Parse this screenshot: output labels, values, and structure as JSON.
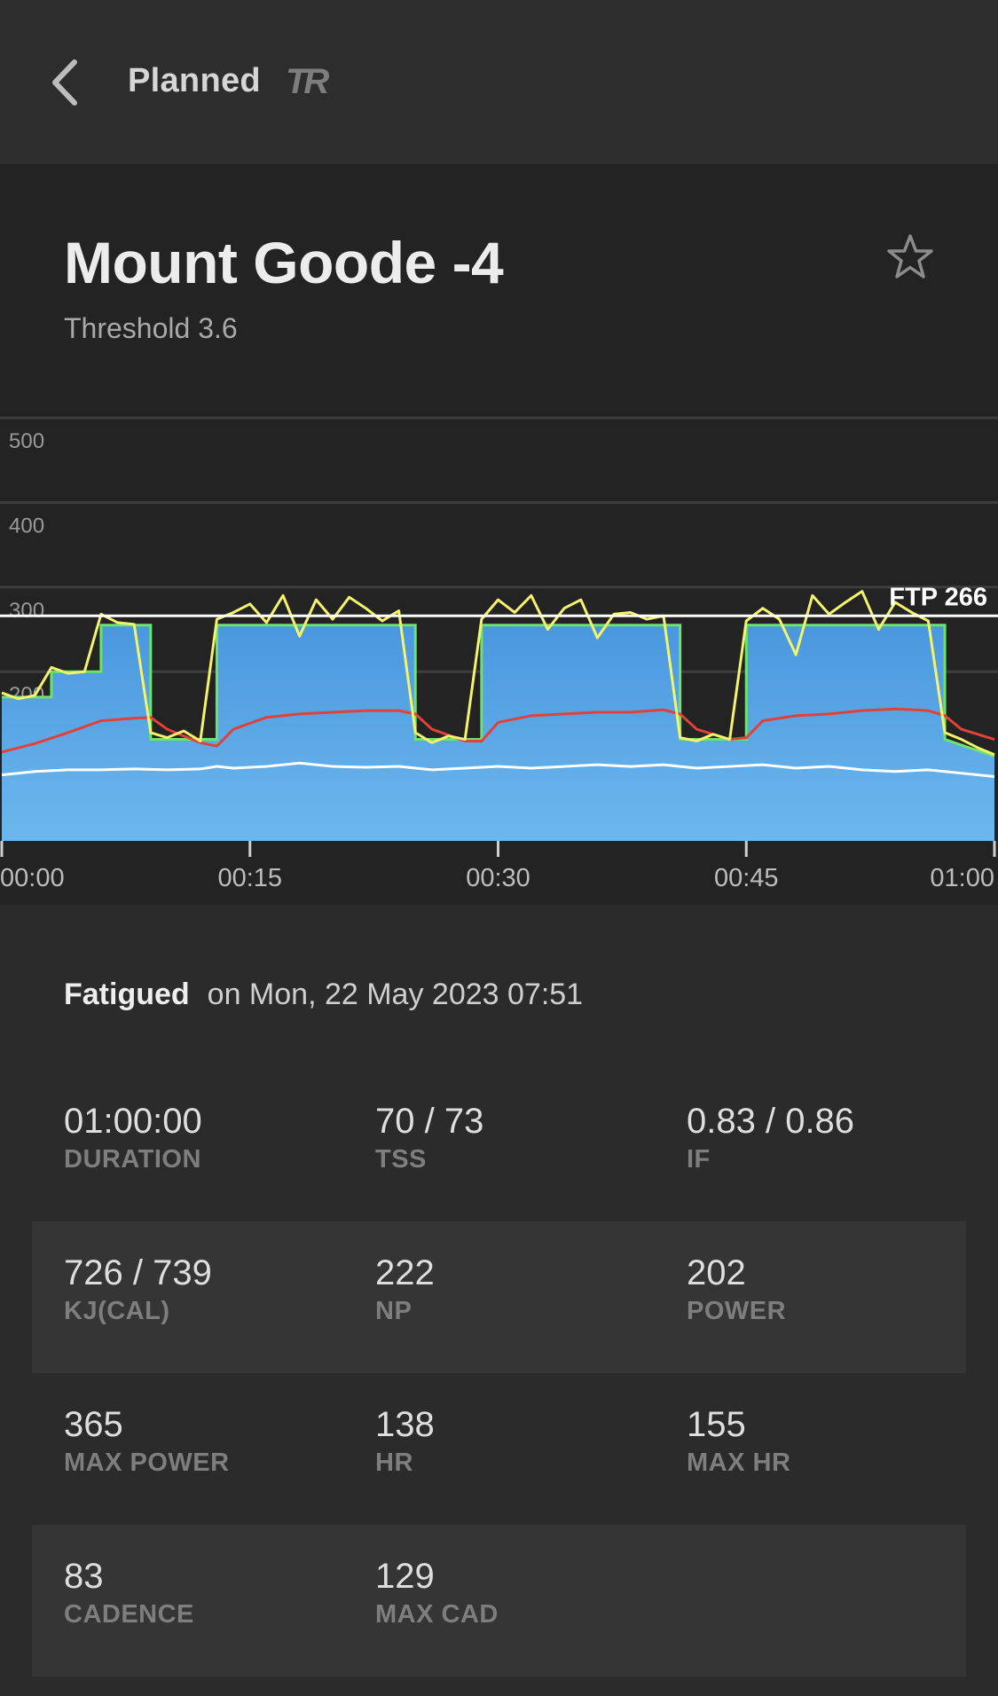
{
  "header": {
    "title": "Planned",
    "logo_text": "TR",
    "back_icon": "chevron-left-icon"
  },
  "workout": {
    "name": "Mount Goode -4",
    "subtitle": "Threshold 3.6",
    "favorite_icon": "star-outline-icon"
  },
  "chart_data": {
    "type": "area",
    "ftp_label": "FTP 266",
    "ftp": 266,
    "yticks": [
      "500",
      "400",
      "300",
      "200"
    ],
    "ylim": [
      0,
      520
    ],
    "xticks": [
      "00:00",
      "00:15",
      "00:30",
      "00:45",
      "01:00"
    ],
    "xlim_min": [
      0,
      60
    ],
    "colors": {
      "target_area": "#4a9be0",
      "target_outline": "#6de36a",
      "power": "#f4f36c",
      "heart_rate": "#e0413a",
      "cadence": "#ffffff",
      "ftp_line": "#ffffff"
    },
    "target_power": {
      "x": [
        0,
        3,
        3,
        6,
        6,
        9,
        9,
        13,
        13,
        25,
        25,
        29,
        29,
        41,
        41,
        45,
        45,
        57,
        57,
        60
      ],
      "y": [
        170,
        170,
        200,
        200,
        255,
        255,
        120,
        120,
        255,
        255,
        120,
        120,
        255,
        255,
        120,
        120,
        255,
        255,
        120,
        100
      ]
    },
    "power": {
      "x": [
        0,
        1,
        2,
        3,
        4,
        5,
        6,
        7,
        8,
        9,
        10,
        11,
        12,
        13,
        14,
        15,
        16,
        17,
        18,
        19,
        20,
        21,
        22,
        23,
        24,
        25,
        26,
        27,
        28,
        29,
        30,
        31,
        32,
        33,
        34,
        35,
        36,
        37,
        38,
        39,
        40,
        41,
        42,
        43,
        44,
        45,
        46,
        47,
        48,
        49,
        50,
        51,
        52,
        53,
        54,
        55,
        56,
        57,
        58,
        59,
        60
      ],
      "y": [
        175,
        168,
        172,
        205,
        198,
        200,
        268,
        258,
        256,
        128,
        122,
        130,
        118,
        262,
        270,
        280,
        258,
        290,
        242,
        285,
        262,
        288,
        275,
        260,
        272,
        128,
        116,
        124,
        120,
        262,
        285,
        270,
        290,
        250,
        275,
        285,
        240,
        268,
        270,
        262,
        266,
        122,
        118,
        126,
        120,
        260,
        275,
        262,
        220,
        290,
        268,
        282,
        295,
        250,
        282,
        270,
        260,
        128,
        120,
        110,
        102
      ]
    },
    "heart_rate": {
      "x": [
        0,
        2,
        4,
        6,
        8,
        9,
        10,
        12,
        13,
        14,
        16,
        18,
        20,
        22,
        24,
        25,
        26,
        28,
        29,
        30,
        32,
        34,
        36,
        38,
        40,
        41,
        42,
        44,
        45,
        46,
        48,
        50,
        52,
        54,
        56,
        57,
        58,
        60
      ],
      "y": [
        105,
        115,
        128,
        142,
        145,
        146,
        132,
        116,
        112,
        132,
        146,
        150,
        152,
        154,
        154,
        150,
        132,
        118,
        118,
        140,
        148,
        150,
        152,
        152,
        155,
        150,
        132,
        120,
        122,
        142,
        148,
        150,
        154,
        156,
        154,
        148,
        132,
        120
      ]
    },
    "cadence": {
      "x": [
        0,
        2,
        4,
        6,
        8,
        10,
        12,
        13,
        14,
        16,
        18,
        20,
        22,
        24,
        26,
        28,
        30,
        32,
        34,
        36,
        38,
        40,
        42,
        44,
        46,
        48,
        50,
        52,
        54,
        56,
        58,
        60
      ],
      "y": [
        78,
        82,
        84,
        84,
        85,
        84,
        85,
        88,
        86,
        88,
        92,
        88,
        87,
        88,
        84,
        86,
        88,
        86,
        88,
        90,
        88,
        90,
        86,
        88,
        90,
        86,
        88,
        84,
        82,
        84,
        80,
        76
      ]
    }
  },
  "status": {
    "label": "Fatigued",
    "date": "on Mon, 22 May 2023 07:51"
  },
  "stats": [
    [
      {
        "value": "01:00:00",
        "label": "DURATION"
      },
      {
        "value": "70 / 73",
        "label": "TSS"
      },
      {
        "value": "0.83 / 0.86",
        "label": "IF"
      }
    ],
    [
      {
        "value": "726 / 739",
        "label": "KJ(CAL)"
      },
      {
        "value": "222",
        "label": "NP"
      },
      {
        "value": "202",
        "label": "POWER"
      }
    ],
    [
      {
        "value": "365",
        "label": "MAX POWER"
      },
      {
        "value": "138",
        "label": "HR"
      },
      {
        "value": "155",
        "label": "MAX HR"
      }
    ],
    [
      {
        "value": "83",
        "label": "CADENCE"
      },
      {
        "value": "129",
        "label": "MAX CAD"
      }
    ]
  ]
}
